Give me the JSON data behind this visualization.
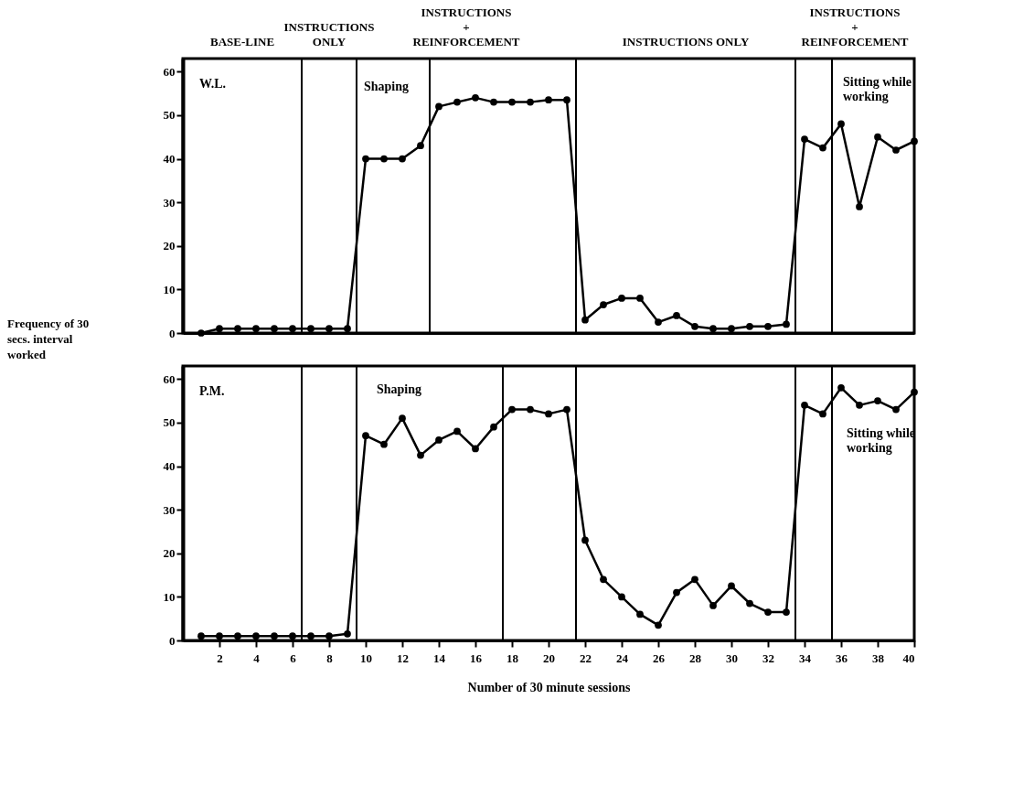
{
  "chart_data": [
    {
      "type": "line",
      "title": "W.L.",
      "ylabel": "Frequency of 30 secs. interval worked",
      "marker": "circle",
      "tick_labels": "y",
      "x": [
        1,
        2,
        3,
        4,
        5,
        6,
        7,
        8,
        9,
        10,
        11,
        12,
        13,
        14,
        15,
        16,
        17,
        18,
        19,
        20,
        21,
        22,
        23,
        24,
        25,
        26,
        27,
        28,
        29,
        30,
        31,
        32,
        33,
        34,
        35,
        36,
        37,
        38,
        39,
        40
      ],
      "series": [
        {
          "color": "#000000",
          "values": [
            0,
            1,
            1,
            1,
            1,
            1,
            1,
            1,
            1,
            40,
            40,
            40,
            43,
            52,
            53,
            54,
            53,
            53,
            53,
            53.5,
            53.5,
            3,
            6.5,
            8,
            8,
            2.5,
            4,
            1.5,
            1,
            1,
            1.5,
            1.5,
            2,
            44.5,
            42.5,
            48,
            29,
            45,
            42,
            44
          ]
        }
      ],
      "xlim": [
        0,
        40
      ],
      "ylim": [
        0,
        63
      ],
      "yticks": [
        0,
        10,
        20,
        30,
        40,
        50,
        60
      ],
      "ref_lines": [
        {
          "axis": "x",
          "value": 6.5
        },
        {
          "axis": "x",
          "value": 9.5
        },
        {
          "axis": "x",
          "value": 13.5
        },
        {
          "axis": "x",
          "value": 21.5
        },
        {
          "axis": "x",
          "value": 33.5
        },
        {
          "axis": "x",
          "value": 35.5
        }
      ],
      "annotations": [
        "BASE-LINE",
        "INSTRUCTIONS ONLY",
        "INSTRUCTIONS + REINFORCEMENT",
        "INSTRUCTIONS ONLY",
        "INSTRUCTIONS + REINFORCEMENT",
        "Shaping",
        "Sitting while working"
      ]
    },
    {
      "type": "line",
      "title": "P.M.",
      "xlabel": "Number of 30 minute sessions",
      "marker": "circle",
      "x": [
        1,
        2,
        3,
        4,
        5,
        6,
        7,
        8,
        9,
        10,
        11,
        12,
        13,
        14,
        15,
        16,
        17,
        18,
        19,
        20,
        21,
        22,
        23,
        24,
        25,
        26,
        27,
        28,
        29,
        30,
        31,
        32,
        33,
        34,
        35,
        36,
        37,
        38,
        39,
        40
      ],
      "series": [
        {
          "color": "#000000",
          "values": [
            1,
            1,
            1,
            1,
            1,
            1,
            1,
            1,
            1.5,
            47,
            45,
            51,
            42.5,
            46,
            48,
            44,
            49,
            53,
            53,
            52,
            53,
            23,
            14,
            10,
            6,
            3.5,
            11,
            14,
            8,
            12.5,
            8.5,
            6.5,
            6.5,
            54,
            52,
            58,
            54,
            55,
            53,
            57
          ]
        }
      ],
      "xlim": [
        0,
        40
      ],
      "xticks": [
        2,
        4,
        6,
        8,
        10,
        12,
        14,
        16,
        18,
        20,
        22,
        24,
        26,
        28,
        30,
        32,
        34,
        36,
        38,
        40
      ],
      "ylim": [
        0,
        63
      ],
      "yticks": [
        0,
        10,
        20,
        30,
        40,
        50,
        60
      ],
      "ref_lines": [
        {
          "axis": "x",
          "value": 6.5
        },
        {
          "axis": "x",
          "value": 9.5
        },
        {
          "axis": "x",
          "value": 17.5
        },
        {
          "axis": "x",
          "value": 21.5
        },
        {
          "axis": "x",
          "value": 33.5
        },
        {
          "axis": "x",
          "value": 35.5
        }
      ],
      "annotations": [
        "Shaping",
        "Sitting while working"
      ]
    }
  ]
}
